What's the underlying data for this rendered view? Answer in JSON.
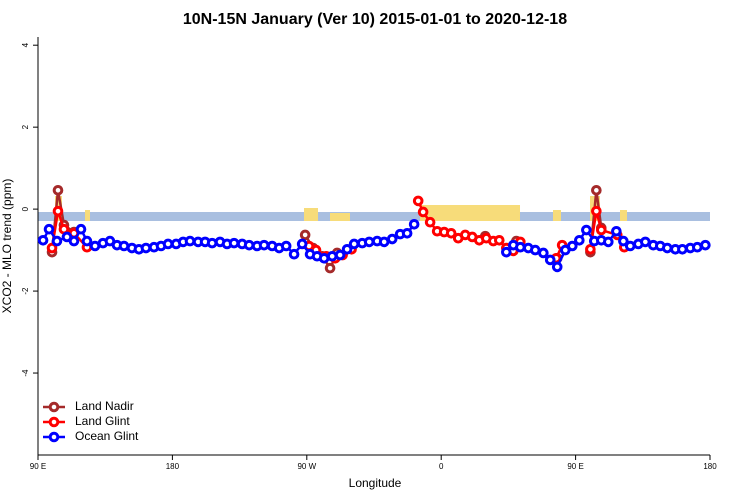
{
  "chart_data": {
    "type": "line",
    "title": "10N-15N January (Ver 10)   2015-01-01 to 2020-12-18",
    "x_label": "Longitude",
    "y_label": "XCO2 - MLO trend (ppm)",
    "xlim": [
      90,
      540
    ],
    "xticks": [
      {
        "value": 90,
        "label": "90 E"
      },
      180,
      {
        "value": 270,
        "label": "90 W"
      },
      {
        "value": 360,
        "label": "0"
      },
      {
        "value": 450,
        "label": "90 E"
      },
      {
        "value": 540,
        "label": "180"
      }
    ],
    "ylim": [
      -6,
      4.2
    ],
    "yticks": [
      4,
      2,
      0,
      -2,
      -4
    ],
    "legend": "bottom-left",
    "series": [
      {
        "name": "Land Nadir",
        "color": "#a52a2a",
        "x": [
          99.4,
          103.4,
          107.4,
          114.1,
          null,
          268.9,
          274.2,
          280.3,
          285.6,
          290.3,
          null,
          389.5,
          null,
          410.3,
          null,
          437.7,
          null,
          459.9,
          463.9,
          467.2
        ],
        "values": [
          -1.05,
          0.46,
          -0.39,
          -0.56,
          null,
          -0.63,
          -0.95,
          -1.15,
          -1.44,
          -1.07,
          null,
          -0.66,
          null,
          -0.78,
          null,
          -1.2,
          null,
          -1.05,
          0.46,
          -0.46
        ]
      },
      {
        "name": "Land Glint",
        "color": "#ff0000",
        "x": [
          99.4,
          103.4,
          107.4,
          114.1,
          122.8,
          null,
          271.5,
          276.2,
          283,
          289,
          294,
          300,
          null,
          344.6,
          347.9,
          352.6,
          357.3,
          362,
          366.7,
          371.4,
          376.1,
          380.8,
          385.5,
          390.2,
          394.9,
          398.9,
          403.6,
          408.3,
          413,
          null,
          437,
          441,
          null,
          459.9,
          463.9,
          467.2,
          477.9,
          482.6
        ],
        "values": [
          -0.95,
          -0.05,
          -0.49,
          -0.59,
          -0.93,
          null,
          -0.9,
          -1.0,
          -1.15,
          -1.2,
          -1.12,
          -0.98,
          null,
          0.2,
          -0.07,
          -0.32,
          -0.54,
          -0.56,
          -0.59,
          -0.71,
          -0.63,
          -0.68,
          -0.76,
          -0.71,
          -0.78,
          -0.76,
          -0.95,
          -1.02,
          -0.8,
          null,
          -1.2,
          -0.88,
          null,
          -0.98,
          -0.05,
          -0.51,
          -0.63,
          -0.93
        ]
      },
      {
        "name": "Ocean Glint",
        "color": "#0000ff",
        "x": [
          93.4,
          97.4,
          102.7,
          109.4,
          114.1,
          118.8,
          122.8,
          128.2,
          133.5,
          138.2,
          142.9,
          147.6,
          152.9,
          157.6,
          162.3,
          167.7,
          172.4,
          177.1,
          182.5,
          187.2,
          191.8,
          197.2,
          201.9,
          206.6,
          211.9,
          216.6,
          221.3,
          226.7,
          231.4,
          236.7,
          241.4,
          246.8,
          251.5,
          256.2,
          261.5,
          266.9,
          272.2,
          276.9,
          281.6,
          287,
          292.3,
          297,
          301.7,
          307.1,
          311.8,
          317.1,
          321.8,
          327.2,
          332.5,
          337.2,
          341.9,
          null,
          403.6,
          408.3,
          413,
          418.3,
          423,
          428.4,
          433,
          437.7,
          443.1,
          447.8,
          452.5,
          457.2,
          462.5,
          467.2,
          471.9,
          477.3,
          482,
          486.6,
          492,
          496.7,
          502,
          506.7,
          511.4,
          516.8,
          521.5,
          526.8,
          531.5,
          536.9
        ],
        "values": [
          -0.76,
          -0.49,
          -0.78,
          -0.68,
          -0.78,
          -0.49,
          -0.78,
          -0.9,
          -0.83,
          -0.78,
          -0.88,
          -0.9,
          -0.95,
          -0.98,
          -0.95,
          -0.93,
          -0.9,
          -0.85,
          -0.85,
          -0.8,
          -0.78,
          -0.8,
          -0.8,
          -0.83,
          -0.8,
          -0.85,
          -0.83,
          -0.85,
          -0.88,
          -0.9,
          -0.88,
          -0.9,
          -0.95,
          -0.9,
          -1.1,
          -0.85,
          -1.1,
          -1.15,
          -1.2,
          -1.15,
          -1.12,
          -0.98,
          -0.85,
          -0.83,
          -0.8,
          -0.78,
          -0.8,
          -0.73,
          -0.61,
          -0.59,
          -0.37,
          null,
          -1.05,
          -0.88,
          -0.93,
          -0.95,
          -1.0,
          -1.07,
          -1.24,
          -1.41,
          -1.0,
          -0.9,
          -0.76,
          -0.51,
          -0.78,
          -0.76,
          -0.8,
          -0.54,
          -0.78,
          -0.9,
          -0.85,
          -0.8,
          -0.88,
          -0.9,
          -0.95,
          -0.98,
          -0.98,
          -0.95,
          -0.93,
          -0.88
        ]
      }
    ]
  }
}
